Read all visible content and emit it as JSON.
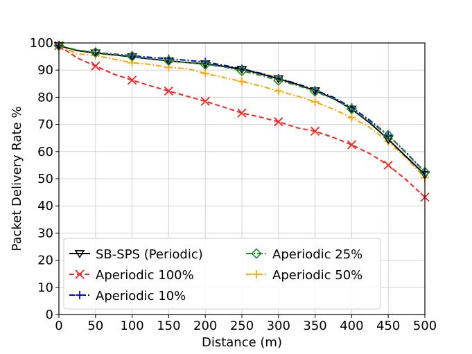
{
  "chart_data": {
    "type": "line",
    "title": "",
    "xlabel": "Distance (m)",
    "ylabel": "Packet Delivery Rate %",
    "xlim": [
      0,
      500
    ],
    "ylim": [
      0,
      100
    ],
    "xticks": [
      0,
      50,
      100,
      150,
      200,
      250,
      300,
      350,
      400,
      450,
      500
    ],
    "yticks": [
      0,
      10,
      20,
      30,
      40,
      50,
      60,
      70,
      80,
      90,
      100
    ],
    "grid": true,
    "legend_position": "lower-left",
    "series": [
      {
        "name": "SB-SPS (Periodic)",
        "color": "#000000",
        "dash": "solid",
        "marker": "triangle-down",
        "x": [
          0,
          25,
          50,
          75,
          100,
          125,
          150,
          175,
          200,
          225,
          250,
          275,
          300,
          325,
          350,
          375,
          400,
          425,
          450,
          475,
          500
        ],
        "y": [
          99,
          97.2,
          96.3,
          95.6,
          94.9,
          94.1,
          93.4,
          92.8,
          92.3,
          91.4,
          90.3,
          88.7,
          86.8,
          84.8,
          82.4,
          79.6,
          75.6,
          70.5,
          64.5,
          58,
          51.5
        ],
        "marker_x": [
          0,
          50,
          100,
          150,
          200,
          250,
          300,
          350,
          400,
          450,
          500
        ]
      },
      {
        "name": "Aperiodic 100%",
        "color": "#ff2020",
        "dash": "dashed",
        "marker": "x",
        "x": [
          0,
          25,
          50,
          75,
          100,
          125,
          150,
          175,
          200,
          225,
          250,
          275,
          300,
          325,
          350,
          375,
          400,
          425,
          450,
          475,
          500
        ],
        "y": [
          99,
          94.5,
          91.5,
          88.5,
          86.3,
          84.2,
          82.3,
          80.4,
          78.5,
          76.4,
          74.2,
          72.7,
          71,
          68.8,
          67.5,
          65.2,
          62.5,
          59.2,
          55,
          49.5,
          43.2
        ],
        "marker_x": [
          0,
          50,
          100,
          150,
          200,
          250,
          300,
          350,
          400,
          450,
          500
        ]
      },
      {
        "name": "Aperiodic 10%",
        "color": "#0000ff",
        "dash": "dashdot",
        "marker": "plus",
        "x": [
          0,
          25,
          50,
          75,
          100,
          125,
          150,
          175,
          200,
          225,
          250,
          275,
          300,
          325,
          350,
          375,
          400,
          425,
          450,
          475,
          500
        ],
        "y": [
          99,
          97.3,
          96.5,
          95.9,
          95.3,
          94.7,
          94.2,
          93.6,
          93,
          91.8,
          90.5,
          88.9,
          87,
          85,
          82.6,
          80,
          76.2,
          71.5,
          66,
          59.5,
          52.5
        ],
        "marker_x": [
          0,
          50,
          100,
          150,
          200,
          250,
          300,
          350,
          400,
          450,
          500
        ]
      },
      {
        "name": "Aperiodic 25%",
        "color": "#228b22",
        "dash": "dashdot",
        "marker": "diamond",
        "x": [
          0,
          25,
          50,
          75,
          100,
          125,
          150,
          175,
          200,
          225,
          250,
          275,
          300,
          325,
          350,
          375,
          400,
          425,
          450,
          475,
          500
        ],
        "y": [
          99,
          97.4,
          96.5,
          95.7,
          95.1,
          94.2,
          93.5,
          92.8,
          92.1,
          91.2,
          89.7,
          88.1,
          86.2,
          84.4,
          82.2,
          79.4,
          75.7,
          71,
          66,
          59.3,
          52.4
        ],
        "marker_x": [
          0,
          50,
          100,
          150,
          200,
          250,
          300,
          350,
          400,
          450,
          500
        ]
      },
      {
        "name": "Aperiodic 50%",
        "color": "#ffa500",
        "dash": "dashdot",
        "marker": "plus",
        "x": [
          0,
          25,
          50,
          75,
          100,
          125,
          150,
          175,
          200,
          225,
          250,
          275,
          300,
          325,
          350,
          375,
          400,
          425,
          450,
          475,
          500
        ],
        "y": [
          99,
          96,
          95.4,
          94,
          92.7,
          92.1,
          91,
          90.5,
          88.8,
          87.3,
          85.8,
          84.2,
          82.3,
          80.5,
          78.3,
          75.6,
          72.5,
          68.8,
          63.7,
          57.5,
          50.4
        ],
        "marker_x": [
          0,
          50,
          100,
          150,
          200,
          250,
          300,
          350,
          400,
          450,
          500
        ]
      }
    ],
    "legend_order": [
      0,
      1,
      2,
      3,
      4
    ]
  }
}
